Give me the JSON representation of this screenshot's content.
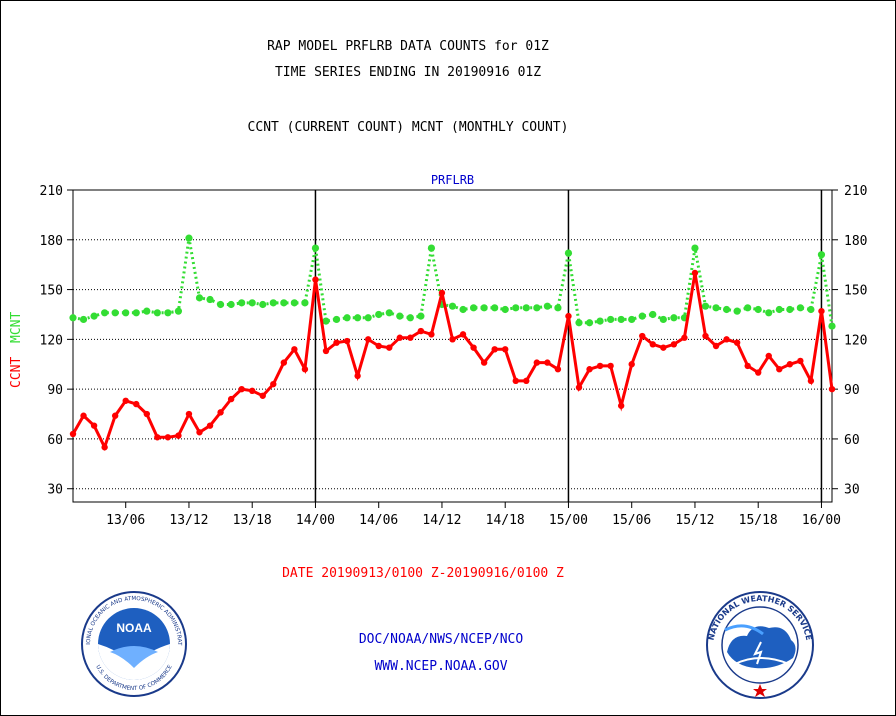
{
  "header": {
    "line1": "RAP MODEL PRFLRB DATA COUNTS for 01Z",
    "line2": "TIME SERIES ENDING IN 20190916 01Z",
    "line3": "CCNT (CURRENT COUNT) MCNT (MONTHLY COUNT)"
  },
  "footer": {
    "date_range": "DATE 20190913/0100 Z-20190916/0100 Z",
    "org": "DOC/NOAA/NWS/NCEP/NCO",
    "url": "WWW.NCEP.NOAA.GOV"
  },
  "logos": {
    "noaa_text": "NOAA",
    "noaa_ring_top": "NATIONAL OCEANIC AND ATMOSPHERIC ADMINISTRATION",
    "noaa_ring_bottom": "U.S. DEPARTMENT OF COMMERCE",
    "nws_ring": "NATIONAL WEATHER SERVICE"
  },
  "colors": {
    "ccnt": "#ff0000",
    "mcnt": "#33dd33",
    "title": "#0000cc",
    "axis": "#000000"
  },
  "chart_data": {
    "type": "line",
    "title": "PRFLRB",
    "ylabel_left_ccnt": "CCNT",
    "ylabel_left_mcnt": "MCNT",
    "ylim": [
      22,
      210
    ],
    "yticks": [
      30,
      60,
      90,
      120,
      150,
      180,
      210
    ],
    "x_range_hours": [
      0,
      72
    ],
    "xticks": [
      {
        "hour": 5,
        "label": "13/06"
      },
      {
        "hour": 11,
        "label": "13/12"
      },
      {
        "hour": 17,
        "label": "13/18"
      },
      {
        "hour": 23,
        "label": "14/00"
      },
      {
        "hour": 29,
        "label": "14/06"
      },
      {
        "hour": 35,
        "label": "14/12"
      },
      {
        "hour": 41,
        "label": "14/18"
      },
      {
        "hour": 47,
        "label": "15/00"
      },
      {
        "hour": 53,
        "label": "15/06"
      },
      {
        "hour": 59,
        "label": "15/12"
      },
      {
        "hour": 65,
        "label": "15/18"
      },
      {
        "hour": 71,
        "label": "16/00"
      }
    ],
    "day_boundaries_hours": [
      23,
      47,
      71
    ],
    "series": [
      {
        "name": "MCNT",
        "style": "dotted",
        "values": [
          133,
          132,
          134,
          136,
          136,
          136,
          136,
          137,
          136,
          136,
          137,
          181,
          145,
          144,
          141,
          141,
          142,
          142,
          141,
          142,
          142,
          142,
          142,
          175,
          131,
          132,
          133,
          133,
          133,
          135,
          136,
          134,
          133,
          134,
          175,
          141,
          140,
          138,
          139,
          139,
          139,
          138,
          139,
          139,
          139,
          140,
          139,
          172,
          130,
          130,
          131,
          132,
          132,
          132,
          134,
          135,
          132,
          133,
          133,
          175,
          140,
          139,
          138,
          137,
          139,
          138,
          136,
          138,
          138,
          139,
          138,
          171,
          128
        ]
      },
      {
        "name": "CCNT",
        "style": "solid",
        "values": [
          63,
          74,
          68,
          55,
          74,
          83,
          81,
          75,
          61,
          61,
          62,
          75,
          64,
          68,
          76,
          84,
          90,
          89,
          86,
          93,
          106,
          114,
          102,
          156,
          113,
          118,
          119,
          98,
          120,
          116,
          115,
          121,
          121,
          125,
          123,
          148,
          120,
          123,
          115,
          106,
          114,
          114,
          95,
          95,
          106,
          106,
          102,
          134,
          91,
          102,
          104,
          104,
          80,
          105,
          122,
          117,
          115,
          117,
          121,
          160,
          122,
          116,
          120,
          118,
          104,
          100,
          110,
          102,
          105,
          107,
          95,
          137,
          90
        ]
      }
    ]
  }
}
